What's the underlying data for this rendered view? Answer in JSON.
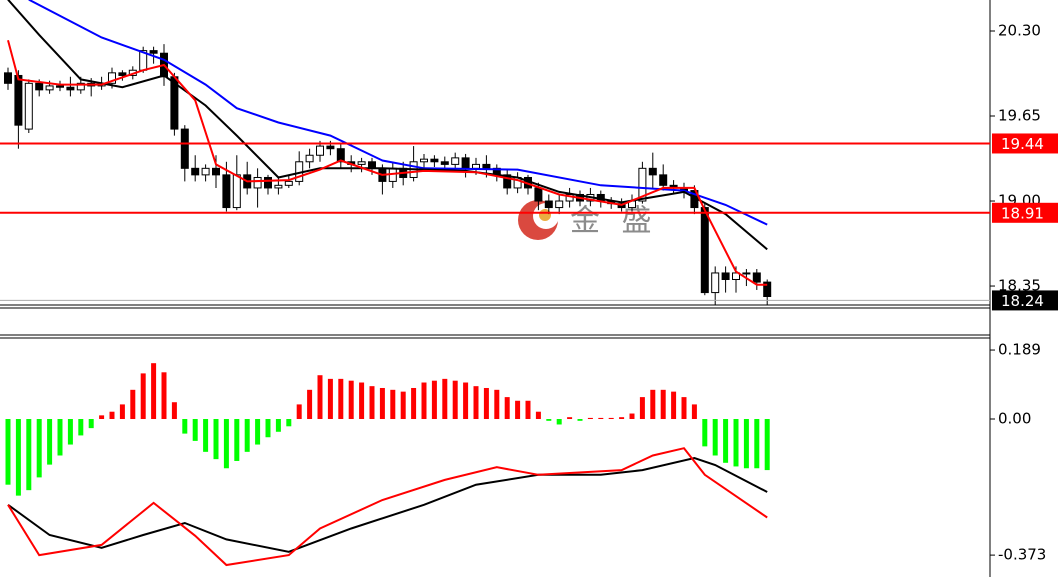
{
  "chart_data": [
    {
      "type": "candlestick",
      "open": [
        19.98,
        19.96,
        19.55,
        19.9,
        19.85,
        19.88,
        19.87,
        19.85,
        19.9,
        19.88,
        19.9,
        19.98,
        19.96,
        20.0,
        20.15,
        20.13,
        19.95,
        19.55,
        19.25,
        19.2,
        19.25,
        19.2,
        18.95,
        19.2,
        19.1,
        19.18,
        19.1,
        19.12,
        19.15,
        19.3,
        19.35,
        19.42,
        19.4,
        19.3,
        19.28,
        19.3,
        19.25,
        19.15,
        19.25,
        19.18,
        19.3,
        19.32,
        19.3,
        19.28,
        19.33,
        19.25,
        19.28,
        19.25,
        19.2,
        19.1,
        19.18,
        19.1,
        19.0,
        18.95,
        19.0,
        19.05,
        19.0,
        19.05,
        19.0,
        18.98,
        18.95,
        19.0,
        19.25,
        19.2,
        19.12,
        19.1,
        19.08,
        18.95,
        18.3,
        18.45,
        18.4,
        18.45,
        18.45,
        18.38
      ],
      "high": [
        20.02,
        20.0,
        19.93,
        19.93,
        19.92,
        19.92,
        19.95,
        19.95,
        19.94,
        19.95,
        20.02,
        20.0,
        20.03,
        20.18,
        20.18,
        20.2,
        19.98,
        19.58,
        19.35,
        19.28,
        19.35,
        19.3,
        19.35,
        19.3,
        19.25,
        19.2,
        19.18,
        19.2,
        19.38,
        19.4,
        19.46,
        19.46,
        19.44,
        19.35,
        19.33,
        19.33,
        19.28,
        19.3,
        19.3,
        19.42,
        19.36,
        19.35,
        19.34,
        19.37,
        19.36,
        19.33,
        19.35,
        19.28,
        19.24,
        19.22,
        19.2,
        19.14,
        19.05,
        19.05,
        19.1,
        19.08,
        19.1,
        19.08,
        19.03,
        19.02,
        19.05,
        19.3,
        19.37,
        19.28,
        19.16,
        19.14,
        19.12,
        18.98,
        18.5,
        18.5,
        18.5,
        18.48,
        18.48,
        18.4
      ],
      "low": [
        19.85,
        19.4,
        19.52,
        19.8,
        19.82,
        19.84,
        19.8,
        19.82,
        19.8,
        19.85,
        19.86,
        19.92,
        19.93,
        19.98,
        20.05,
        19.88,
        19.5,
        19.15,
        19.15,
        19.15,
        19.1,
        18.92,
        18.93,
        19.05,
        18.95,
        19.05,
        19.05,
        19.1,
        19.12,
        19.25,
        19.3,
        19.35,
        19.25,
        19.22,
        19.22,
        19.2,
        19.05,
        19.1,
        19.12,
        19.15,
        19.25,
        19.26,
        19.24,
        19.25,
        19.18,
        19.2,
        19.18,
        19.15,
        19.05,
        19.06,
        19.05,
        18.93,
        18.9,
        18.9,
        18.95,
        18.96,
        18.96,
        18.95,
        18.94,
        18.92,
        18.92,
        18.98,
        19.1,
        19.08,
        19.05,
        19.02,
        18.9,
        18.28,
        18.2,
        18.3,
        18.3,
        18.35,
        18.32,
        18.2
      ],
      "close": [
        19.9,
        19.58,
        19.9,
        19.85,
        19.88,
        19.87,
        19.85,
        19.9,
        19.88,
        19.9,
        19.98,
        19.96,
        20.0,
        20.15,
        20.13,
        19.95,
        19.55,
        19.25,
        19.2,
        19.25,
        19.2,
        18.95,
        19.2,
        19.1,
        19.18,
        19.1,
        19.12,
        19.15,
        19.3,
        19.35,
        19.42,
        19.4,
        19.3,
        19.28,
        19.3,
        19.25,
        19.15,
        19.25,
        19.18,
        19.3,
        19.32,
        19.3,
        19.28,
        19.33,
        19.25,
        19.28,
        19.25,
        19.2,
        19.1,
        19.18,
        19.1,
        19.0,
        18.95,
        19.0,
        19.05,
        19.0,
        19.05,
        19.0,
        18.98,
        18.95,
        19.0,
        19.25,
        19.2,
        19.12,
        19.1,
        19.08,
        18.95,
        18.3,
        18.45,
        18.4,
        18.45,
        18.45,
        18.38,
        18.27
      ],
      "lines": [
        {
          "color": "#0000ff",
          "x": [
            2,
            9,
            15,
            19,
            22,
            26,
            31,
            36,
            40,
            49,
            57,
            65,
            69,
            73
          ],
          "values": [
            20.54,
            20.25,
            20.08,
            19.89,
            19.71,
            19.6,
            19.5,
            19.31,
            19.25,
            19.24,
            19.12,
            19.08,
            18.97,
            18.82
          ]
        },
        {
          "color": "#000000",
          "x": [
            0,
            3,
            7,
            11,
            15,
            19,
            22,
            26,
            30,
            36,
            44,
            49,
            53,
            59,
            65,
            69,
            73
          ],
          "values": [
            20.54,
            20.27,
            19.93,
            19.87,
            19.96,
            19.73,
            19.5,
            19.18,
            19.25,
            19.25,
            19.23,
            19.18,
            19.07,
            18.99,
            19.07,
            18.9,
            18.63
          ]
        },
        {
          "color": "#ff0000",
          "x": [
            0,
            1,
            5,
            9,
            13,
            15,
            18,
            20,
            23,
            27,
            30,
            32,
            36,
            40,
            45,
            49,
            53,
            59,
            63,
            66,
            67,
            70,
            72,
            73
          ],
          "values": [
            20.23,
            19.93,
            19.89,
            19.89,
            20.0,
            20.04,
            19.77,
            19.28,
            19.15,
            19.16,
            19.24,
            19.31,
            19.2,
            19.23,
            19.22,
            19.16,
            19.05,
            18.97,
            19.1,
            19.1,
            18.93,
            18.46,
            18.36,
            18.36
          ]
        }
      ],
      "levels": [
        19.44,
        18.91
      ],
      "level_color": "#ff0000",
      "last_price": 18.24,
      "watermark": "金 盛",
      "ylim": [
        18.205,
        20.537
      ],
      "yticks": [
        {
          "value": 20.3,
          "label": "20.30"
        },
        19.65,
        {
          "value": 19,
          "label": "19.00"
        },
        18.35
      ]
    },
    {
      "type": "macd",
      "histogram": [
        -0.18,
        -0.21,
        -0.195,
        -0.16,
        -0.125,
        -0.1,
        -0.07,
        -0.045,
        -0.025,
        0.01,
        0.02,
        0.04,
        0.08,
        0.125,
        0.153,
        0.128,
        0.046,
        -0.04,
        -0.06,
        -0.09,
        -0.11,
        -0.135,
        -0.115,
        -0.09,
        -0.07,
        -0.05,
        -0.035,
        -0.02,
        0.04,
        0.08,
        0.12,
        0.11,
        0.11,
        0.105,
        0.1,
        0.09,
        0.085,
        0.08,
        0.075,
        0.085,
        0.1,
        0.105,
        0.11,
        0.105,
        0.1,
        0.09,
        0.085,
        0.08,
        0.06,
        0.05,
        0.05,
        0.02,
        -0.005,
        -0.015,
        0.005,
        -0.005,
        0.003,
        0.003,
        0.003,
        0.005,
        0.015,
        0.06,
        0.08,
        0.08,
        0.075,
        0.06,
        0.04,
        -0.075,
        -0.1,
        -0.12,
        -0.13,
        -0.135,
        -0.135,
        -0.14
      ],
      "up_color": "#ff0000",
      "down_color": "#00ff00",
      "lines": [
        {
          "color": "#000000",
          "x": [
            0,
            4,
            9,
            13,
            17,
            21,
            27,
            33,
            40,
            45,
            51,
            57,
            61,
            66,
            68,
            73
          ],
          "values": [
            -0.235,
            -0.318,
            -0.353,
            -0.318,
            -0.285,
            -0.33,
            -0.364,
            -0.3,
            -0.235,
            -0.18,
            -0.153,
            -0.153,
            -0.14,
            -0.107,
            -0.126,
            -0.2
          ]
        },
        {
          "color": "#ff0000",
          "x": [
            0,
            3,
            9,
            14,
            18,
            21,
            27,
            30,
            36,
            42,
            47,
            51,
            59,
            62,
            65,
            67,
            73
          ],
          "values": [
            -0.235,
            -0.373,
            -0.345,
            -0.23,
            -0.32,
            -0.4,
            -0.373,
            -0.3,
            -0.222,
            -0.167,
            -0.132,
            -0.153,
            -0.14,
            -0.1,
            -0.08,
            -0.153,
            -0.27
          ]
        }
      ],
      "ylim": [
        -0.433,
        0.222
      ],
      "yticks": [
        0.189,
        {
          "value": 0,
          "label": "0.00"
        },
        -0.373
      ]
    }
  ]
}
